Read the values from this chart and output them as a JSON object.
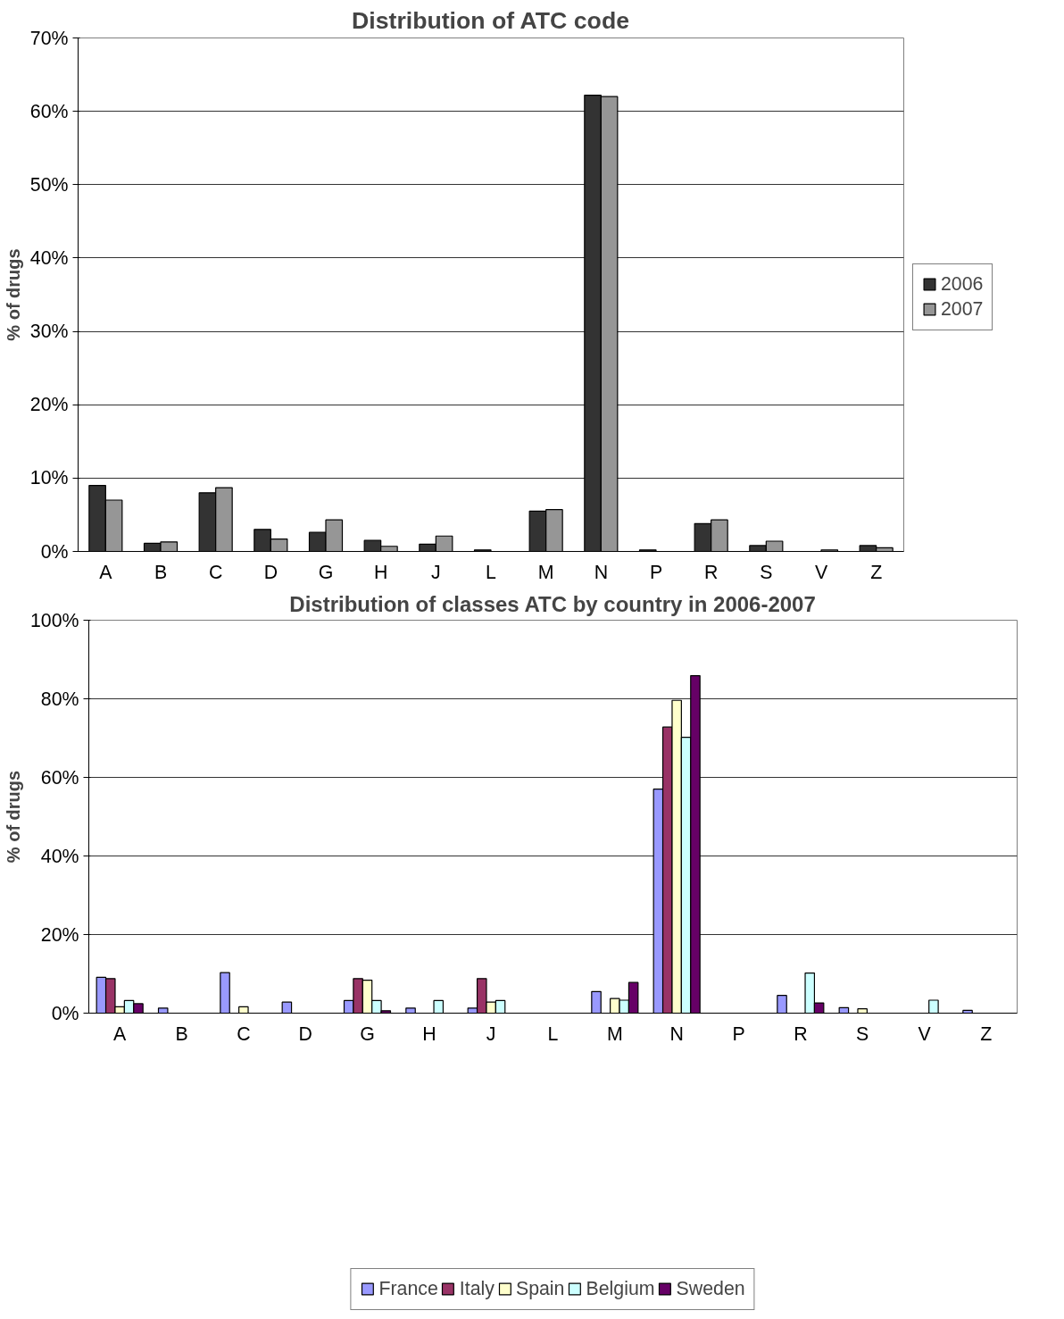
{
  "chart_data": [
    {
      "type": "bar",
      "title": "Distribution of ATC code",
      "ylabel": "% of drugs",
      "categories": [
        "A",
        "B",
        "C",
        "D",
        "G",
        "H",
        "J",
        "L",
        "M",
        "N",
        "P",
        "R",
        "S",
        "V",
        "Z"
      ],
      "series": [
        {
          "name": "2006",
          "color": "#333333",
          "values": [
            9.0,
            1.1,
            8.0,
            3.0,
            2.6,
            1.5,
            1.0,
            0.2,
            5.5,
            62.2,
            0.2,
            3.8,
            0.8,
            0,
            0.8
          ]
        },
        {
          "name": "2007",
          "color": "#969696",
          "values": [
            7.0,
            1.3,
            8.7,
            1.7,
            4.3,
            0.7,
            2.1,
            0,
            5.7,
            62.0,
            0,
            4.3,
            1.4,
            0.2,
            0.5
          ]
        }
      ],
      "ylim": [
        0,
        70
      ],
      "yticks": [
        {
          "value": 0,
          "label": "0%"
        },
        {
          "value": 10,
          "label": "10%"
        },
        {
          "value": 20,
          "label": "20%"
        },
        {
          "value": 30,
          "label": "30%"
        },
        {
          "value": 40,
          "label": "40%"
        },
        {
          "value": 50,
          "label": "50%"
        },
        {
          "value": 60,
          "label": "60%"
        },
        {
          "value": 70,
          "label": "70%"
        }
      ],
      "grid": "y",
      "legend": "right"
    },
    {
      "type": "bar",
      "title": "Distribution of classes ATC by country in 2006-2007",
      "ylabel": "% of drugs",
      "categories": [
        "A",
        "B",
        "C",
        "D",
        "G",
        "H",
        "J",
        "L",
        "M",
        "N",
        "P",
        "R",
        "S",
        "V",
        "Z"
      ],
      "series": [
        {
          "name": "France",
          "color": "#9999ff",
          "values": [
            9.1,
            1.3,
            10.3,
            2.8,
            3.2,
            1.3,
            1.3,
            0,
            5.5,
            57.0,
            0,
            4.5,
            1.4,
            0,
            0.7
          ]
        },
        {
          "name": "Italy",
          "color": "#993366",
          "values": [
            8.8,
            0,
            0,
            0,
            8.8,
            0,
            8.8,
            0,
            0,
            72.8,
            0,
            0,
            0,
            0,
            0
          ]
        },
        {
          "name": "Spain",
          "color": "#ffffcc",
          "values": [
            1.6,
            0,
            1.6,
            0,
            8.4,
            0,
            2.8,
            0,
            3.7,
            79.6,
            0,
            0,
            1.1,
            0,
            0
          ]
        },
        {
          "name": "Belgium",
          "color": "#ccffff",
          "values": [
            3.2,
            0,
            0,
            0,
            3.2,
            3.2,
            3.2,
            0,
            3.3,
            70.2,
            0,
            10.2,
            0,
            3.3,
            0
          ]
        },
        {
          "name": "Sweden",
          "color": "#660066",
          "values": [
            2.4,
            0,
            0,
            0,
            0.6,
            0,
            0,
            0,
            7.8,
            85.9,
            0,
            2.6,
            0,
            0,
            0
          ]
        }
      ],
      "ylim": [
        0,
        100
      ],
      "yticks": [
        {
          "value": 0,
          "label": "0%"
        },
        {
          "value": 20,
          "label": "20%"
        },
        {
          "value": 40,
          "label": "40%"
        },
        {
          "value": 60,
          "label": "60%"
        },
        {
          "value": 80,
          "label": "80%"
        },
        {
          "value": 100,
          "label": "100%"
        }
      ],
      "grid": "y",
      "legend": "bottom"
    }
  ]
}
